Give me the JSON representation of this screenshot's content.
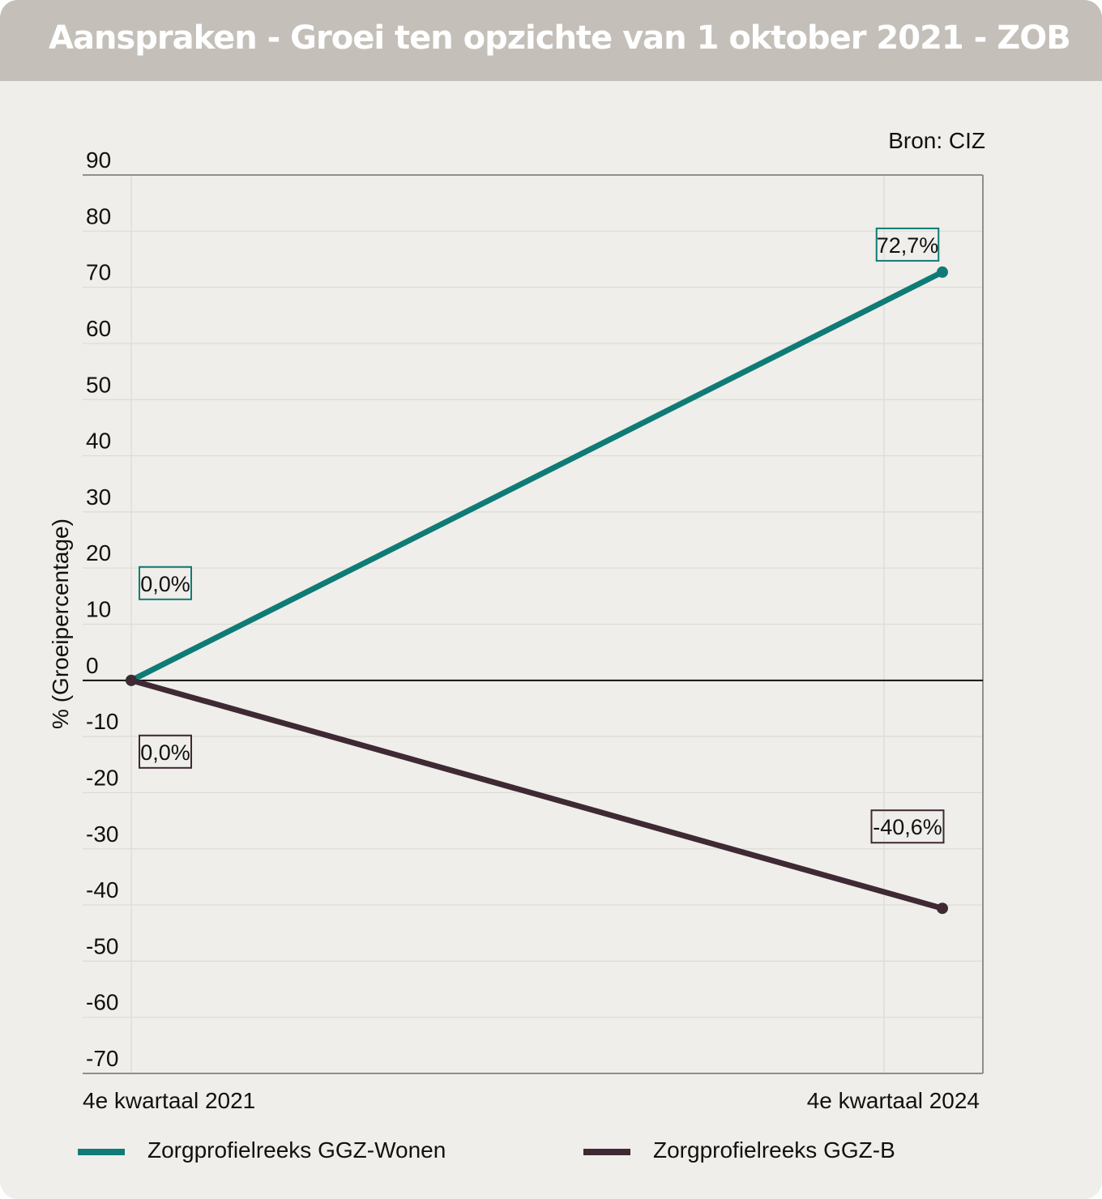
{
  "header": {
    "title": "Aanspraken - Groei ten opzichte van 1 oktober 2021 - ZOB"
  },
  "source_note": "Bron: CIZ",
  "colors": {
    "header_bg": "#c4c0b9",
    "background": "#efeeea",
    "series_wonen": "#0f7b76",
    "series_b": "#3e2934"
  },
  "chart_data": {
    "type": "line",
    "title": "Aanspraken - Groei ten opzichte van 1 oktober 2021 - ZOB",
    "ylabel": "% (Groeipercentage)",
    "xlabel": "",
    "categories": [
      "4e kwartaal 2021",
      "4e kwartaal 2024"
    ],
    "ylim": [
      -70,
      90
    ],
    "yticks": [
      90,
      80,
      70,
      60,
      50,
      40,
      30,
      20,
      10,
      0,
      -10,
      -20,
      -30,
      -40,
      -50,
      -60,
      -70
    ],
    "grid": true,
    "legend_position": "bottom",
    "series": [
      {
        "name": "Zorgprofielreeks GGZ-Wonen",
        "values": [
          0.0,
          72.7
        ],
        "labels": [
          "0,0%",
          "72,7%"
        ],
        "color": "#0f7b76"
      },
      {
        "name": "Zorgprofielreeks GGZ-B",
        "values": [
          0.0,
          -40.6
        ],
        "labels": [
          "0,0%",
          "-40,6%"
        ],
        "color": "#3e2934"
      }
    ]
  }
}
